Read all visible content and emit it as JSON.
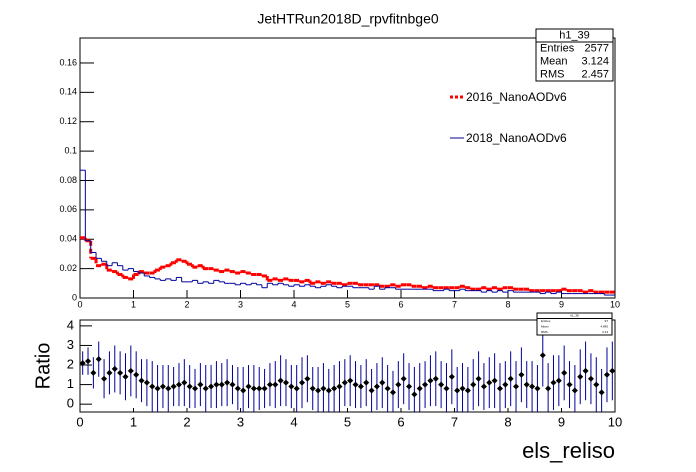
{
  "chart_data": [
    {
      "type": "histogram",
      "title": "JetHTRun2018D_rpvfitnbge0",
      "bins": [
        0,
        0.1,
        0.2,
        0.3,
        0.4,
        0.5,
        0.6,
        0.7,
        0.8,
        0.9,
        1,
        1.1,
        1.2,
        1.3,
        1.4,
        1.5,
        1.6,
        1.7,
        1.8,
        1.9,
        2,
        2.1,
        2.2,
        2.3,
        2.4,
        2.5,
        2.6,
        2.7,
        2.8,
        2.9,
        3,
        3.1,
        3.2,
        3.3,
        3.4,
        3.5,
        3.6,
        3.7,
        3.8,
        3.9,
        4,
        4.1,
        4.2,
        4.3,
        4.4,
        4.5,
        4.6,
        4.7,
        4.8,
        4.9,
        5,
        5.1,
        5.2,
        5.3,
        5.4,
        5.5,
        5.6,
        5.7,
        5.8,
        5.9,
        6,
        6.1,
        6.2,
        6.3,
        6.4,
        6.5,
        6.6,
        6.7,
        6.8,
        6.9,
        7,
        7.1,
        7.2,
        7.3,
        7.4,
        7.5,
        7.6,
        7.7,
        7.8,
        7.9,
        8,
        8.1,
        8.2,
        8.3,
        8.4,
        8.5,
        8.6,
        8.7,
        8.8,
        8.9,
        9,
        9.1,
        9.2,
        9.3,
        9.4,
        9.5,
        9.6,
        9.7,
        9.8,
        9.9,
        10
      ],
      "series": [
        {
          "name": "2016_NanoAODv6",
          "color": "#ff0000",
          "style": "dashed",
          "values": [
            0.041,
            0.039,
            0.027,
            0.022,
            0.023,
            0.019,
            0.018,
            0.016,
            0.014,
            0.013,
            0.016,
            0.018,
            0.017,
            0.017,
            0.019,
            0.021,
            0.022,
            0.024,
            0.026,
            0.025,
            0.023,
            0.021,
            0.022,
            0.02,
            0.02,
            0.019,
            0.018,
            0.019,
            0.018,
            0.017,
            0.018,
            0.017,
            0.016,
            0.016,
            0.015,
            0.012,
            0.013,
            0.012,
            0.013,
            0.012,
            0.012,
            0.011,
            0.012,
            0.01,
            0.011,
            0.01,
            0.011,
            0.01,
            0.01,
            0.009,
            0.01,
            0.01,
            0.009,
            0.009,
            0.009,
            0.009,
            0.008,
            0.008,
            0.009,
            0.008,
            0.009,
            0.009,
            0.008,
            0.008,
            0.007,
            0.008,
            0.007,
            0.007,
            0.007,
            0.007,
            0.007,
            0.008,
            0.007,
            0.006,
            0.006,
            0.007,
            0.006,
            0.007,
            0.006,
            0.007,
            0.007,
            0.006,
            0.006,
            0.006,
            0.005,
            0.005,
            0.005,
            0.005,
            0.005,
            0.005,
            0.006,
            0.005,
            0.005,
            0.005,
            0.004,
            0.005,
            0.004,
            0.004,
            0.004,
            0.004
          ]
        },
        {
          "name": "2018_NanoAODv6",
          "color": "#000099",
          "style": "solid",
          "values": [
            0.087,
            0.039,
            0.031,
            0.027,
            0.025,
            0.022,
            0.024,
            0.022,
            0.019,
            0.02,
            0.018,
            0.017,
            0.015,
            0.014,
            0.013,
            0.012,
            0.013,
            0.012,
            0.014,
            0.011,
            0.011,
            0.012,
            0.01,
            0.011,
            0.01,
            0.012,
            0.011,
            0.01,
            0.01,
            0.009,
            0.01,
            0.009,
            0.01,
            0.009,
            0.007,
            0.01,
            0.009,
            0.01,
            0.009,
            0.008,
            0.009,
            0.008,
            0.009,
            0.008,
            0.007,
            0.008,
            0.009,
            0.008,
            0.007,
            0.008,
            0.008,
            0.007,
            0.007,
            0.007,
            0.006,
            0.008,
            0.006,
            0.007,
            0.007,
            0.006,
            0.006,
            0.006,
            0.006,
            0.006,
            0.006,
            0.006,
            0.005,
            0.005,
            0.006,
            0.005,
            0.005,
            0.006,
            0.005,
            0.005,
            0.005,
            0.004,
            0.005,
            0.004,
            0.005,
            0.004,
            0.005,
            0.004,
            0.004,
            0.004,
            0.004,
            0.004,
            0.003,
            0.004,
            0.003,
            0.004,
            0.003,
            0.003,
            0.003,
            0.003,
            0.003,
            0.003,
            0.003,
            0.003,
            0.002,
            0.002
          ]
        }
      ],
      "xlim": [
        0,
        10
      ],
      "xticks": [
        0,
        1,
        2,
        3,
        4,
        5,
        6,
        7,
        8,
        9,
        10
      ],
      "ylim": [
        0,
        0.177
      ],
      "yticks": [
        0,
        0.02,
        0.04,
        0.06,
        0.08,
        0.1,
        0.12,
        0.14,
        0.16
      ],
      "stats": {
        "name": "h1_39",
        "labels": [
          "Entries",
          "Mean",
          "RMS"
        ],
        "values": [
          "2577",
          "3.124",
          "2.457"
        ]
      }
    },
    {
      "type": "errorbar",
      "xlabel": "els_reliso",
      "ylabel": "Ratio",
      "color": "#000099",
      "marker_color": "#000000",
      "x": [
        0.05,
        0.15,
        0.25,
        0.35,
        0.45,
        0.55,
        0.65,
        0.75,
        0.85,
        0.95,
        1.05,
        1.15,
        1.25,
        1.35,
        1.45,
        1.55,
        1.65,
        1.75,
        1.85,
        1.95,
        2.05,
        2.15,
        2.25,
        2.35,
        2.45,
        2.55,
        2.65,
        2.75,
        2.85,
        2.95,
        3.05,
        3.15,
        3.25,
        3.35,
        3.45,
        3.55,
        3.65,
        3.75,
        3.85,
        3.95,
        4.05,
        4.15,
        4.25,
        4.35,
        4.45,
        4.55,
        4.65,
        4.75,
        4.85,
        4.95,
        5.05,
        5.15,
        5.25,
        5.35,
        5.45,
        5.55,
        5.65,
        5.75,
        5.85,
        5.95,
        6.05,
        6.15,
        6.25,
        6.35,
        6.45,
        6.55,
        6.65,
        6.75,
        6.85,
        6.95,
        7.05,
        7.15,
        7.25,
        7.35,
        7.45,
        7.55,
        7.65,
        7.75,
        7.85,
        7.95,
        8.05,
        8.15,
        8.25,
        8.35,
        8.45,
        8.55,
        8.65,
        8.75,
        8.85,
        8.95,
        9.05,
        9.15,
        9.25,
        9.35,
        9.45,
        9.55,
        9.65,
        9.75,
        9.85,
        9.95
      ],
      "values": [
        2.1,
        2.2,
        1.6,
        2.3,
        1.3,
        1.6,
        1.8,
        1.6,
        1.4,
        1.7,
        1.5,
        1.2,
        1.1,
        0.9,
        0.8,
        0.9,
        0.8,
        0.9,
        1.0,
        1.1,
        0.9,
        0.8,
        1.0,
        0.8,
        0.9,
        1.0,
        1.0,
        1.1,
        1.0,
        0.8,
        0.7,
        0.9,
        0.8,
        0.8,
        0.8,
        1.0,
        1.0,
        1.2,
        1.1,
        0.9,
        0.8,
        1.1,
        1.3,
        0.8,
        0.7,
        0.8,
        0.7,
        0.8,
        0.9,
        1.1,
        1.2,
        1.0,
        0.9,
        1.1,
        0.7,
        0.9,
        1.1,
        0.8,
        0.6,
        1.0,
        1.3,
        0.9,
        0.5,
        0.8,
        1.0,
        1.2,
        1.3,
        1.0,
        0.8,
        1.4,
        0.7,
        0.8,
        0.7,
        1.0,
        1.3,
        0.9,
        1.1,
        1.2,
        0.8,
        1.0,
        1.3,
        0.9,
        1.5,
        1.0,
        0.9,
        0.8,
        2.5,
        0.8,
        1.1,
        1.2,
        1.6,
        1.0,
        0.7,
        1.4,
        1.7,
        1.3,
        1.0,
        0.6,
        1.5,
        1.7
      ],
      "errors": [
        0.6,
        0.7,
        0.8,
        0.9,
        1.0,
        1.1,
        1.2,
        1.1,
        1.2,
        1.3,
        1.2,
        1.1,
        1.2,
        1.3,
        1.2,
        1.1,
        1.2,
        1.0,
        1.1,
        1.2,
        1.1,
        1.0,
        1.1,
        1.2,
        1.1,
        1.2,
        1.1,
        1.2,
        1.0,
        1.1,
        1.2,
        1.1,
        1.2,
        1.1,
        1.0,
        1.1,
        1.2,
        1.3,
        1.2,
        1.1,
        1.2,
        1.3,
        1.2,
        1.1,
        1.2,
        1.3,
        1.1,
        1.2,
        1.3,
        1.2,
        1.3,
        1.2,
        1.1,
        1.2,
        1.1,
        1.2,
        1.3,
        1.2,
        1.1,
        1.2,
        1.3,
        1.2,
        1.4,
        1.3,
        1.2,
        1.3,
        1.4,
        1.2,
        1.3,
        1.4,
        1.2,
        1.3,
        1.2,
        1.3,
        1.4,
        1.2,
        1.3,
        1.4,
        1.3,
        1.2,
        1.4,
        1.3,
        1.4,
        1.2,
        1.3,
        1.2,
        1.6,
        1.3,
        1.4,
        1.3,
        1.4,
        1.2,
        1.3,
        1.4,
        1.5,
        1.3,
        1.4,
        1.2,
        1.4,
        1.5
      ],
      "xlim": [
        0,
        10
      ],
      "xticks": [
        0,
        1,
        2,
        3,
        4,
        5,
        6,
        7,
        8,
        9,
        10
      ],
      "ylim": [
        -0.4,
        4.3
      ],
      "yticks": [
        0,
        1,
        2,
        3,
        4
      ],
      "stats": {
        "name": "h1_38",
        "labels": [
          "Entries",
          "Mean",
          "RMS"
        ],
        "values": [
          "97",
          "4.845",
          "3.13"
        ]
      }
    }
  ]
}
